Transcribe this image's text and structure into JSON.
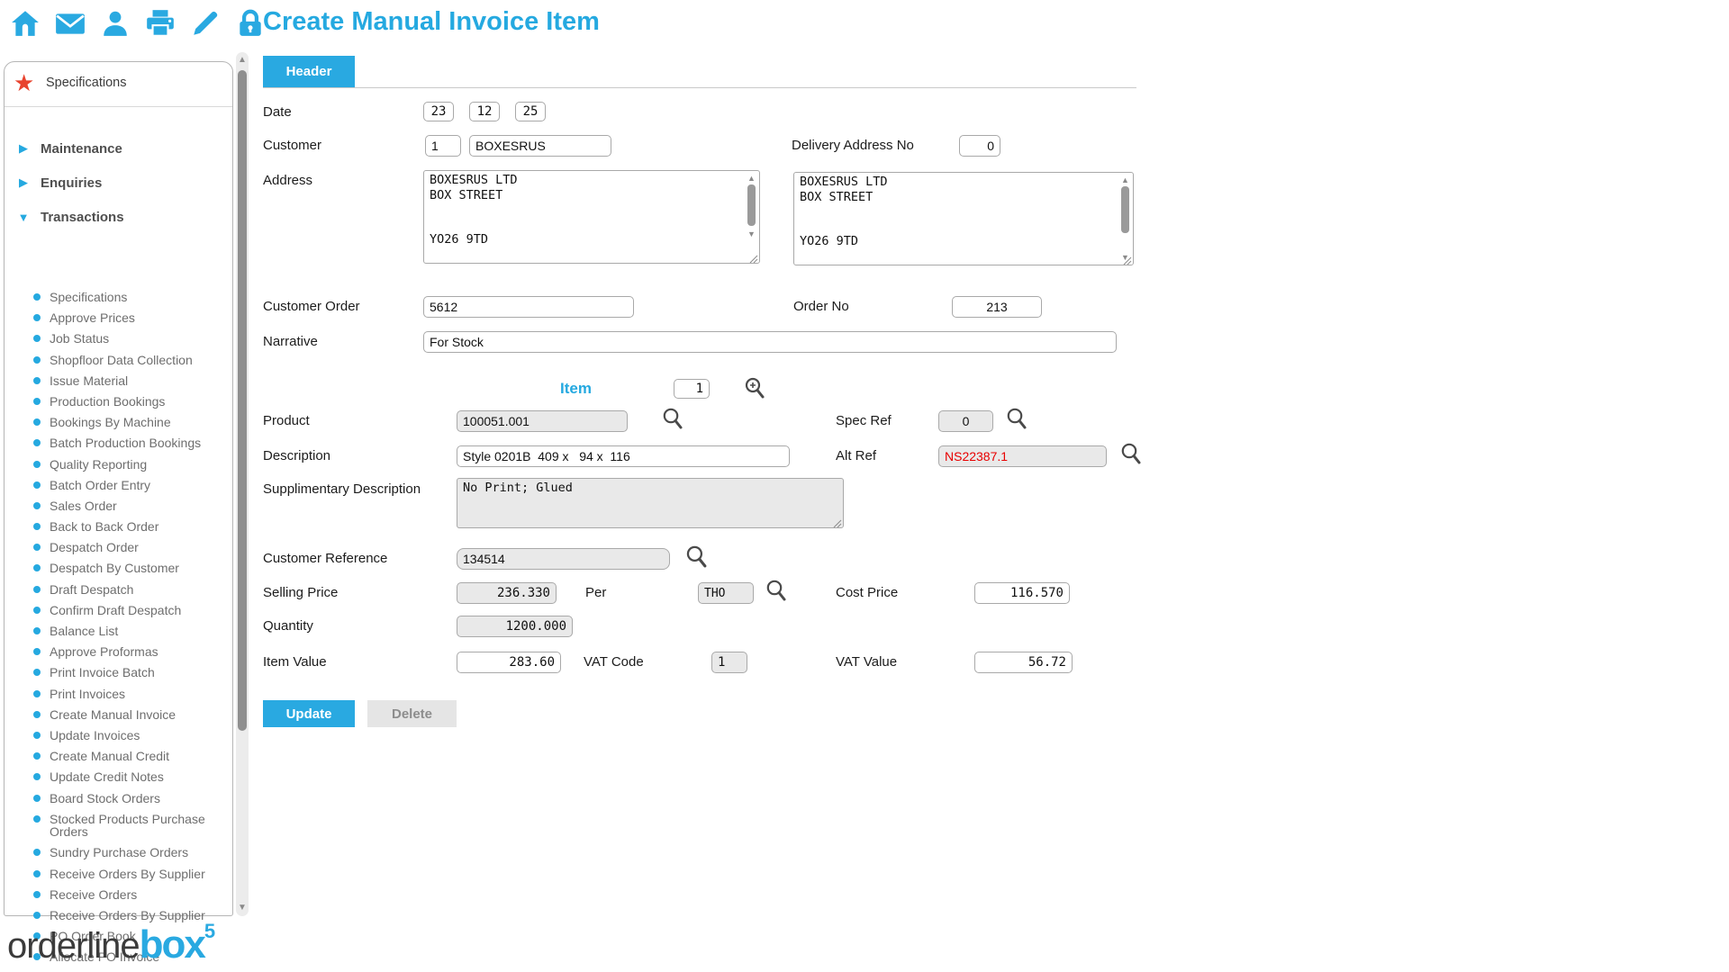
{
  "app": {
    "title": "Create Manual Invoice Item",
    "logo": {
      "part1": "orderline",
      "part2": "box",
      "sup": "5"
    }
  },
  "topbar": {
    "icons": [
      "home-icon",
      "mail-icon",
      "user-icon",
      "printer-icon",
      "pencil-icon",
      "lock-icon"
    ]
  },
  "sidebar": {
    "favorite": {
      "label": "Specifications",
      "icon": "star-icon"
    },
    "sections": [
      {
        "label": "Maintenance",
        "state": "collapsed",
        "arrow": "▶"
      },
      {
        "label": "Enquiries",
        "state": "collapsed",
        "arrow": "▶"
      },
      {
        "label": "Transactions",
        "state": "expanded",
        "arrow": "▼"
      }
    ],
    "menu_items": [
      "Specifications",
      "Approve Prices",
      "Job Status",
      "Shopfloor Data Collection",
      "Issue Material",
      "Production Bookings",
      "Bookings By Machine",
      "Batch Production Bookings",
      "Quality Reporting",
      "Batch Order Entry",
      "Sales Order",
      "Back to Back Order",
      "Despatch Order",
      "Despatch By Customer",
      "Draft Despatch",
      "Confirm Draft Despatch",
      "Balance List",
      "Approve Proformas",
      "Print Invoice Batch",
      "Print Invoices",
      "Create Manual Invoice",
      "Update Invoices",
      "Create Manual Credit",
      "Update Credit Notes",
      "Board Stock Orders",
      "Stocked Products Purchase Orders",
      "Sundry Purchase Orders",
      "Receive Orders By Supplier",
      "Receive Orders",
      "Receive Orders By Supplier",
      "PO Order Book",
      "Allocate PO Invoice"
    ]
  },
  "form": {
    "tab_label": "Header",
    "date": {
      "label": "Date",
      "day": "23",
      "month": "12",
      "year": "25"
    },
    "customer": {
      "label": "Customer",
      "code": "1",
      "name": "BOXESRUS"
    },
    "delivery_address_no": {
      "label": "Delivery Address No",
      "value": "0"
    },
    "address": {
      "label": "Address",
      "invoice": "BOXESRUS LTD\nBOX STREET\n\n\nYO26 9TD",
      "delivery": "BOXESRUS LTD\nBOX STREET\n\n\nYO26 9TD"
    },
    "customer_order": {
      "label": "Customer Order",
      "value": "5612"
    },
    "order_no": {
      "label": "Order No",
      "value": "213"
    },
    "narrative": {
      "label": "Narrative",
      "value": "For Stock"
    },
    "item": {
      "heading": "Item",
      "number": "1",
      "product": {
        "label": "Product",
        "value": "100051.001"
      },
      "spec_ref": {
        "label": "Spec Ref",
        "value": "0"
      },
      "description": {
        "label": "Description",
        "value": "Style 0201B  409 x   94 x  116"
      },
      "alt_ref": {
        "label": "Alt Ref",
        "value": "NS22387.1"
      },
      "supplementary_description": {
        "label": "Supplimentary Description",
        "value": "No Print; Glued"
      },
      "customer_reference": {
        "label": "Customer Reference",
        "value": "134514"
      },
      "selling_price": {
        "label": "Selling Price",
        "value": "236.330"
      },
      "per": {
        "label": "Per",
        "value": "THO"
      },
      "cost_price": {
        "label": "Cost Price",
        "value": "116.570"
      },
      "quantity": {
        "label": "Quantity",
        "value": "1200.000"
      },
      "item_value": {
        "label": "Item Value",
        "value": "283.60"
      },
      "vat_code": {
        "label": "VAT Code",
        "value": "1"
      },
      "vat_value": {
        "label": "VAT Value",
        "value": "56.72"
      }
    },
    "buttons": {
      "update": "Update",
      "delete": "Delete"
    }
  },
  "colors": {
    "accent": "#29A9E1",
    "title_blue": "#25A9E0",
    "star_red": "#E8432E",
    "alt_ref_red": "#E80000",
    "readonly_bg": "#E9E9E9"
  }
}
